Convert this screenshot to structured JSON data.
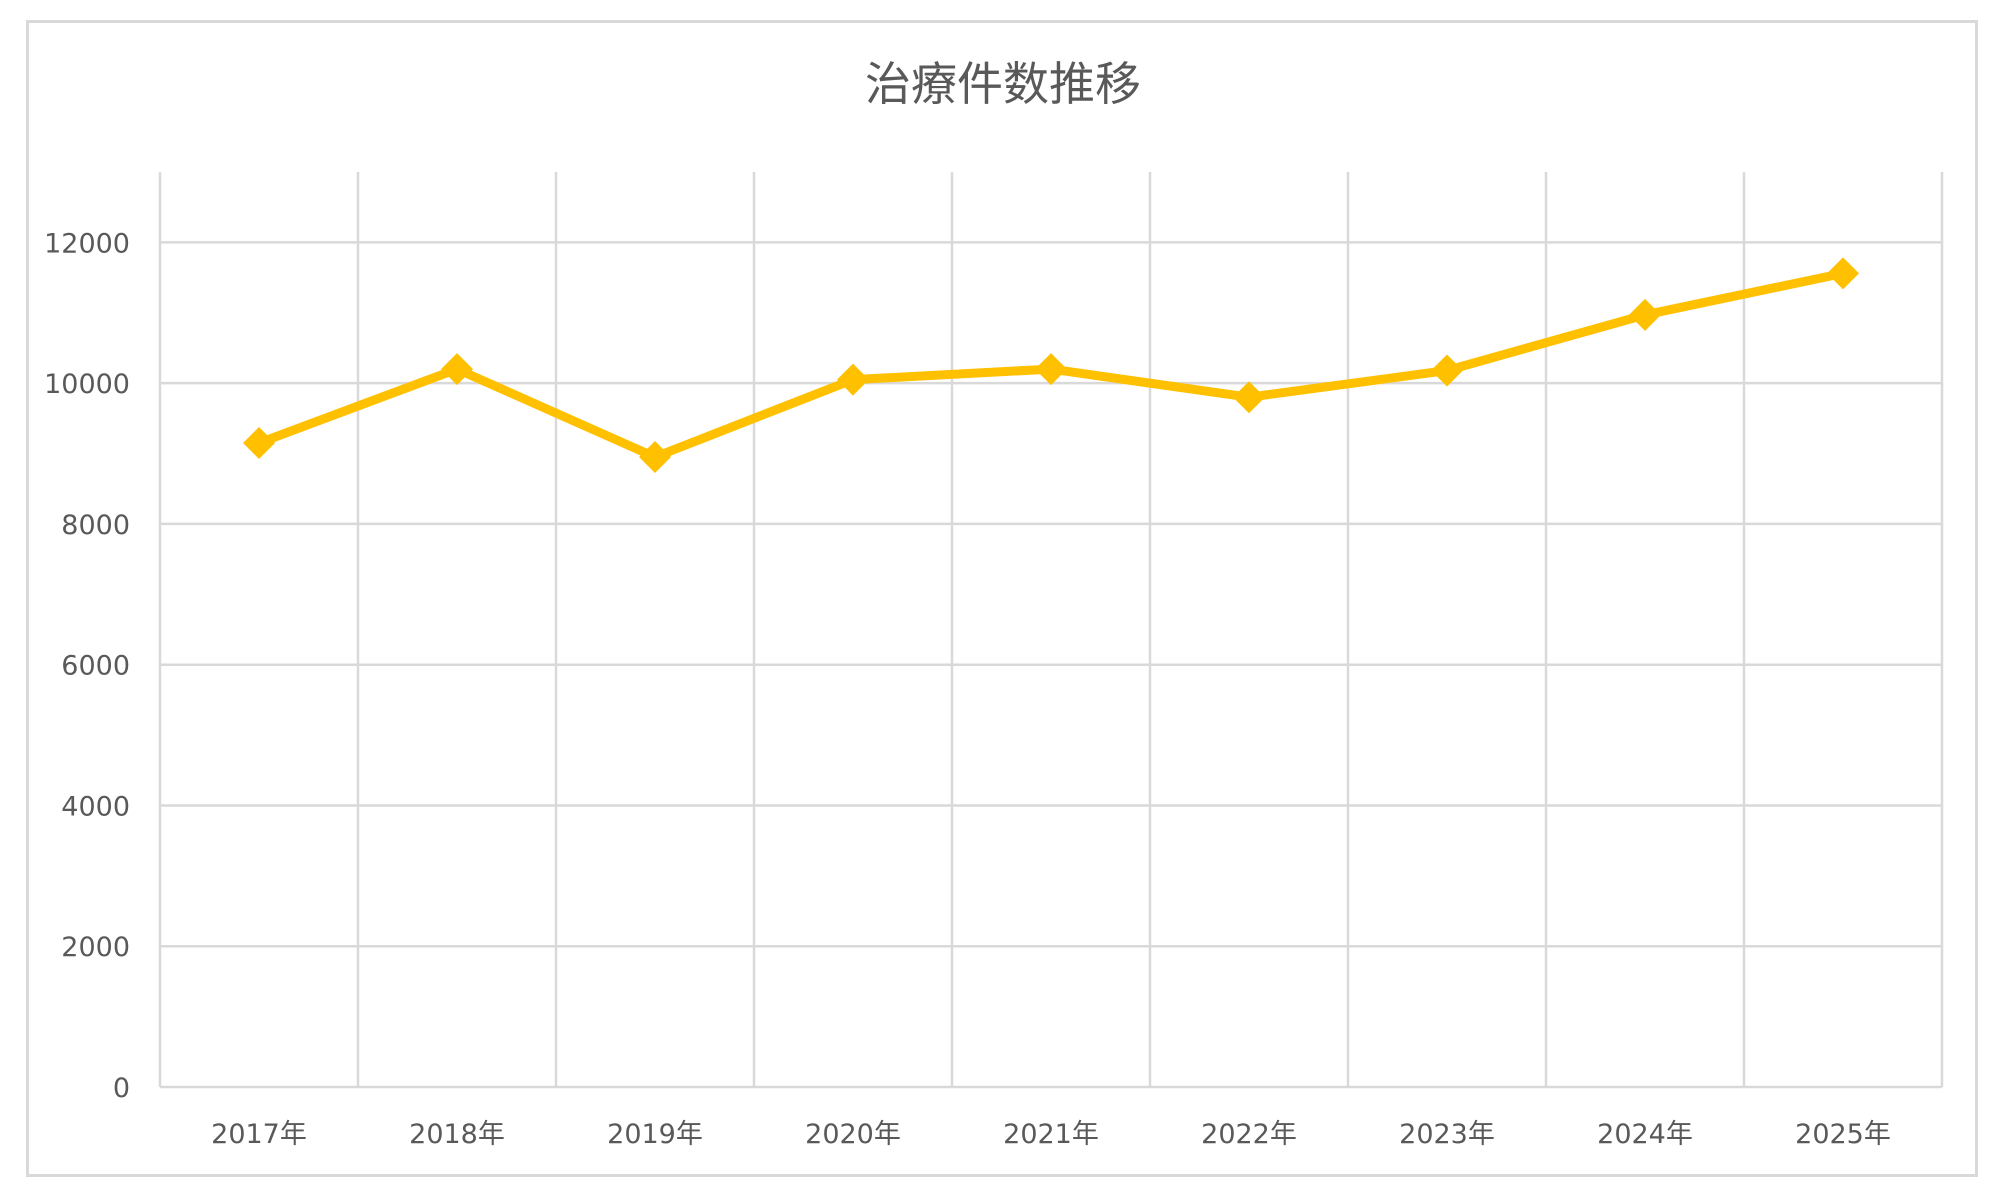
{
  "chart_data": {
    "type": "line",
    "title": "治療件数推移",
    "xlabel": "",
    "ylabel": "",
    "categories": [
      "2017年",
      "2018年",
      "2019年",
      "2020年",
      "2021年",
      "2022年",
      "2023年",
      "2024年",
      "2025年"
    ],
    "series": [
      {
        "values": [
          9150,
          10200,
          8950,
          10050,
          10200,
          9800,
          10180,
          10970,
          11560
        ],
        "marker": "diamond"
      }
    ],
    "ylim": [
      0,
      13000
    ],
    "yticks": [
      0,
      2000,
      4000,
      6000,
      8000,
      10000,
      12000
    ],
    "grid": true,
    "legend": "none",
    "colors": {
      "line": "#ffc000",
      "grid": "#d9d9d9",
      "text": "#595959"
    }
  }
}
